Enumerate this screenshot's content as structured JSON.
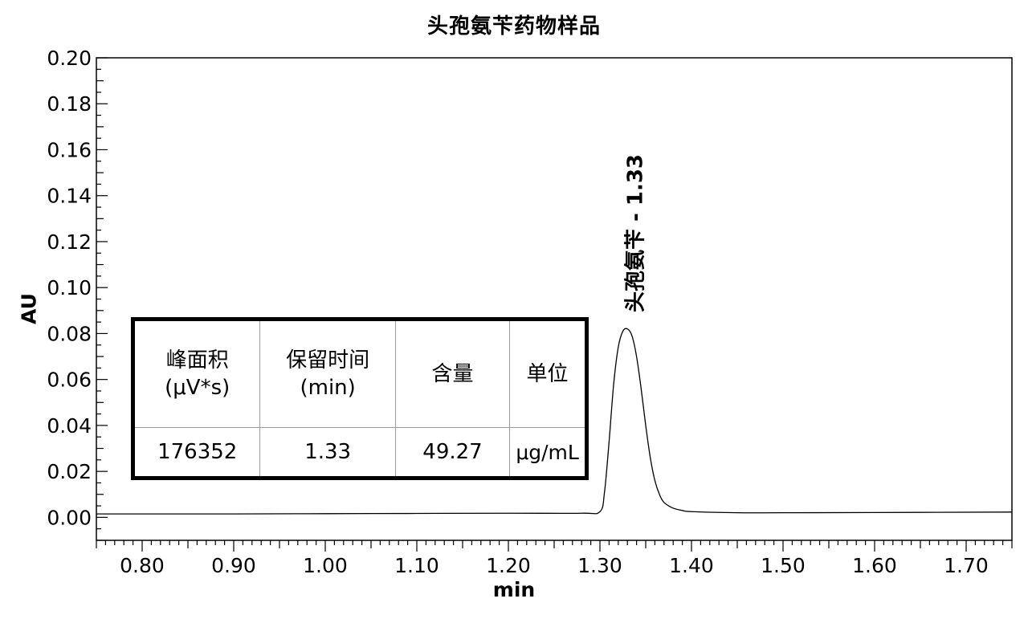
{
  "chart_data": {
    "type": "line",
    "title": "头孢氨苄药物样品",
    "xlabel": "min",
    "ylabel": "AU",
    "xlim": [
      0.75,
      1.75
    ],
    "ylim": [
      -0.01,
      0.2
    ],
    "x_ticks": [
      "0.80",
      "0.90",
      "1.00",
      "1.10",
      "1.20",
      "1.30",
      "1.40",
      "1.50",
      "1.60",
      "1.70"
    ],
    "y_ticks": [
      "0.00",
      "0.02",
      "0.04",
      "0.06",
      "0.08",
      "0.10",
      "0.12",
      "0.14",
      "0.16",
      "0.18",
      "0.20"
    ],
    "grid": false,
    "series": [
      {
        "x": [
          0.75,
          0.9,
          1.0,
          1.1,
          1.2,
          1.28,
          1.3,
          1.305,
          1.31,
          1.315,
          1.32,
          1.325,
          1.33,
          1.335,
          1.34,
          1.345,
          1.35,
          1.355,
          1.36,
          1.365,
          1.37,
          1.38,
          1.39,
          1.4,
          1.45,
          1.5,
          1.6,
          1.75
        ],
        "y": [
          0.0015,
          0.0015,
          0.0016,
          0.0017,
          0.0018,
          0.0018,
          0.0025,
          0.011,
          0.033,
          0.058,
          0.074,
          0.081,
          0.082,
          0.079,
          0.07,
          0.056,
          0.04,
          0.026,
          0.016,
          0.01,
          0.0065,
          0.004,
          0.003,
          0.0025,
          0.002,
          0.002,
          0.0021,
          0.0023
        ]
      }
    ],
    "annotations": [
      {
        "text": "头孢氨苄 - 1.33",
        "x": 1.33,
        "y": 0.082
      }
    ]
  },
  "results_table": {
    "headers": [
      {
        "line1": "峰面积",
        "line2": "(μV*s)"
      },
      {
        "line1": "保留时间",
        "line2": "(min)"
      },
      {
        "line1": "含量",
        "line2": ""
      },
      {
        "line1": "单位",
        "line2": ""
      }
    ],
    "row": [
      "176352",
      "1.33",
      "49.27",
      "μg/mL"
    ]
  }
}
